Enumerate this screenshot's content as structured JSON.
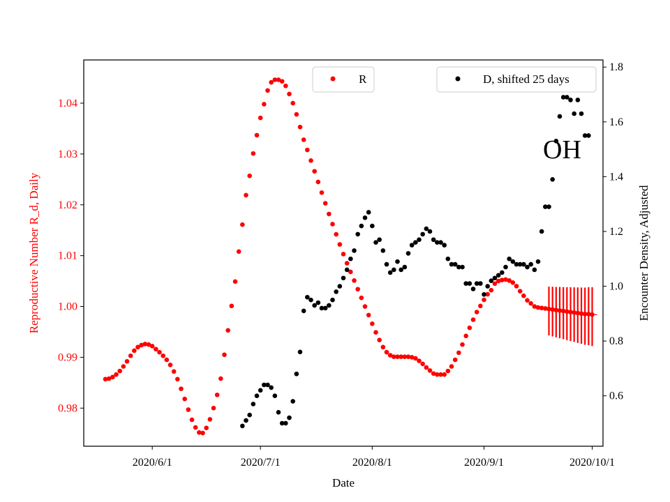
{
  "chart_data": {
    "type": "scatter",
    "xlabel": "Date",
    "x_ticks": [
      {
        "date": "2020-06-01",
        "label": "2020/6/1"
      },
      {
        "date": "2020-07-01",
        "label": "2020/7/1"
      },
      {
        "date": "2020-08-01",
        "label": "2020/8/1"
      },
      {
        "date": "2020-09-01",
        "label": "2020/9/1"
      },
      {
        "date": "2020-10-01",
        "label": "2020/10/1"
      }
    ],
    "xlim": [
      "2020-05-13",
      "2020-10-04"
    ],
    "y_left": {
      "label": "Reproductive Number R_d, Daily",
      "color": "#ff0000",
      "lim": [
        0.9725,
        1.0485
      ],
      "ticks": [
        0.98,
        0.99,
        1.0,
        1.01,
        1.02,
        1.03,
        1.04
      ],
      "tick_labels": [
        "0.98",
        "0.99",
        "1.00",
        "1.01",
        "1.02",
        "1.03",
        "1.04"
      ]
    },
    "y_right": {
      "label": "Encounter Density, Adjusted",
      "color": "#000000",
      "lim": [
        0.416,
        1.826
      ],
      "ticks": [
        0.6,
        0.8,
        1.0,
        1.2,
        1.4,
        1.6,
        1.8
      ],
      "tick_labels": [
        "0.6",
        "0.8",
        "1.0",
        "1.2",
        "1.4",
        "1.6",
        "1.8"
      ]
    },
    "annotation": "OH",
    "series": [
      {
        "name": "R",
        "axis": "left",
        "color": "#ff0000",
        "marker": "circle",
        "x_start": "2020-05-19",
        "step_days": 1,
        "values": [
          0.9857,
          0.9858,
          0.9861,
          0.9866,
          0.9873,
          0.9882,
          0.9892,
          0.9903,
          0.9913,
          0.992,
          0.9924,
          0.9926,
          0.9925,
          0.9922,
          0.9916,
          0.991,
          0.9903,
          0.9895,
          0.9885,
          0.9872,
          0.9857,
          0.9838,
          0.9818,
          0.9797,
          0.9777,
          0.9762,
          0.9752,
          0.9751,
          0.9761,
          0.9778,
          0.98,
          0.9826,
          0.9858,
          0.9905,
          0.9953,
          1.0001,
          1.0049,
          1.0108,
          1.0161,
          1.0219,
          1.0257,
          1.0301,
          1.0337,
          1.0371,
          1.0398,
          1.0425,
          1.0441,
          1.0446,
          1.0446,
          1.0443,
          1.0434,
          1.0418,
          1.04,
          1.0378,
          1.0353,
          1.0328,
          1.0308,
          1.0287,
          1.0266,
          1.0245,
          1.0224,
          1.0203,
          1.0182,
          1.0162,
          1.0142,
          1.0122,
          1.0103,
          1.0085,
          1.0068,
          1.0051,
          1.0034,
          1.0017,
          1.0,
          0.9983,
          0.9966,
          0.9949,
          0.9934,
          0.992,
          0.991,
          0.9904,
          0.9901,
          0.9901,
          0.9901,
          0.9901,
          0.9901,
          0.99,
          0.9898,
          0.9893,
          0.9887,
          0.988,
          0.9874,
          0.9868,
          0.9866,
          0.9866,
          0.9866,
          0.9873,
          0.9882,
          0.9895,
          0.9909,
          0.9925,
          0.9942,
          0.9958,
          0.9974,
          0.9989,
          1.0001,
          1.0013,
          1.0024,
          1.0032,
          1.0045,
          1.005,
          1.0052,
          1.0053,
          1.0051,
          1.0047,
          1.004,
          1.003,
          1.0021,
          1.0012,
          1.0006,
          1.0,
          0.9998,
          0.9997,
          0.9996,
          0.9995,
          0.9994,
          0.9993,
          0.9992,
          0.9991,
          0.999,
          0.9989,
          0.9988,
          0.9987,
          0.9986,
          0.9985,
          0.9985,
          0.9984
        ]
      },
      {
        "name": "D, shifted 25 days",
        "axis": "right",
        "color": "#000000",
        "marker": "circle",
        "points": [
          [
            "2020-06-26",
            0.49
          ],
          [
            "2020-06-27",
            0.51
          ],
          [
            "2020-06-28",
            0.53
          ],
          [
            "2020-06-29",
            0.57
          ],
          [
            "2020-06-30",
            0.6
          ],
          [
            "2020-07-01",
            0.62
          ],
          [
            "2020-07-02",
            0.64
          ],
          [
            "2020-07-03",
            0.64
          ],
          [
            "2020-07-04",
            0.63
          ],
          [
            "2020-07-05",
            0.6
          ],
          [
            "2020-07-06",
            0.54
          ],
          [
            "2020-07-07",
            0.5
          ],
          [
            "2020-07-08",
            0.5
          ],
          [
            "2020-07-09",
            0.52
          ],
          [
            "2020-07-10",
            0.58
          ],
          [
            "2020-07-11",
            0.68
          ],
          [
            "2020-07-12",
            0.76
          ],
          [
            "2020-07-13",
            0.91
          ],
          [
            "2020-07-14",
            0.96
          ],
          [
            "2020-07-15",
            0.95
          ],
          [
            "2020-07-16",
            0.93
          ],
          [
            "2020-07-17",
            0.94
          ],
          [
            "2020-07-18",
            0.92
          ],
          [
            "2020-07-19",
            0.92
          ],
          [
            "2020-07-20",
            0.93
          ],
          [
            "2020-07-21",
            0.95
          ],
          [
            "2020-07-22",
            0.98
          ],
          [
            "2020-07-23",
            1.0
          ],
          [
            "2020-07-24",
            1.03
          ],
          [
            "2020-07-25",
            1.06
          ],
          [
            "2020-07-26",
            1.1
          ],
          [
            "2020-07-27",
            1.13
          ],
          [
            "2020-07-28",
            1.19
          ],
          [
            "2020-07-29",
            1.22
          ],
          [
            "2020-07-30",
            1.25
          ],
          [
            "2020-07-31",
            1.27
          ],
          [
            "2020-08-01",
            1.22
          ],
          [
            "2020-08-02",
            1.16
          ],
          [
            "2020-08-03",
            1.17
          ],
          [
            "2020-08-04",
            1.13
          ],
          [
            "2020-08-05",
            1.08
          ],
          [
            "2020-08-06",
            1.05
          ],
          [
            "2020-08-07",
            1.06
          ],
          [
            "2020-08-08",
            1.09
          ],
          [
            "2020-08-09",
            1.06
          ],
          [
            "2020-08-10",
            1.07
          ],
          [
            "2020-08-11",
            1.12
          ],
          [
            "2020-08-12",
            1.15
          ],
          [
            "2020-08-13",
            1.16
          ],
          [
            "2020-08-14",
            1.17
          ],
          [
            "2020-08-15",
            1.19
          ],
          [
            "2020-08-16",
            1.21
          ],
          [
            "2020-08-17",
            1.2
          ],
          [
            "2020-08-18",
            1.17
          ],
          [
            "2020-08-19",
            1.16
          ],
          [
            "2020-08-20",
            1.16
          ],
          [
            "2020-08-21",
            1.15
          ],
          [
            "2020-08-22",
            1.1
          ],
          [
            "2020-08-23",
            1.08
          ],
          [
            "2020-08-24",
            1.08
          ],
          [
            "2020-08-25",
            1.07
          ],
          [
            "2020-08-26",
            1.07
          ],
          [
            "2020-08-27",
            1.01
          ],
          [
            "2020-08-28",
            1.01
          ],
          [
            "2020-08-29",
            0.99
          ],
          [
            "2020-08-30",
            1.01
          ],
          [
            "2020-08-31",
            1.01
          ],
          [
            "2020-09-01",
            0.97
          ],
          [
            "2020-09-02",
            1.0
          ],
          [
            "2020-09-03",
            1.02
          ],
          [
            "2020-09-04",
            1.03
          ],
          [
            "2020-09-05",
            1.04
          ],
          [
            "2020-09-06",
            1.05
          ],
          [
            "2020-09-07",
            1.07
          ],
          [
            "2020-09-08",
            1.1
          ],
          [
            "2020-09-09",
            1.09
          ],
          [
            "2020-09-10",
            1.08
          ],
          [
            "2020-09-11",
            1.08
          ],
          [
            "2020-09-12",
            1.08
          ],
          [
            "2020-09-13",
            1.07
          ],
          [
            "2020-09-14",
            1.08
          ],
          [
            "2020-09-15",
            1.06
          ],
          [
            "2020-09-16",
            1.09
          ],
          [
            "2020-09-17",
            1.2
          ],
          [
            "2020-09-18",
            1.29
          ],
          [
            "2020-09-19",
            1.29
          ],
          [
            "2020-09-20",
            1.39
          ],
          [
            "2020-09-21",
            1.53
          ],
          [
            "2020-09-22",
            1.62
          ],
          [
            "2020-09-23",
            1.69
          ],
          [
            "2020-09-24",
            1.69
          ],
          [
            "2020-09-25",
            1.68
          ],
          [
            "2020-09-26",
            1.63
          ],
          [
            "2020-09-27",
            1.68
          ],
          [
            "2020-09-28",
            1.63
          ],
          [
            "2020-09-29",
            1.55
          ],
          [
            "2020-09-30",
            1.55
          ]
        ]
      }
    ]
  }
}
